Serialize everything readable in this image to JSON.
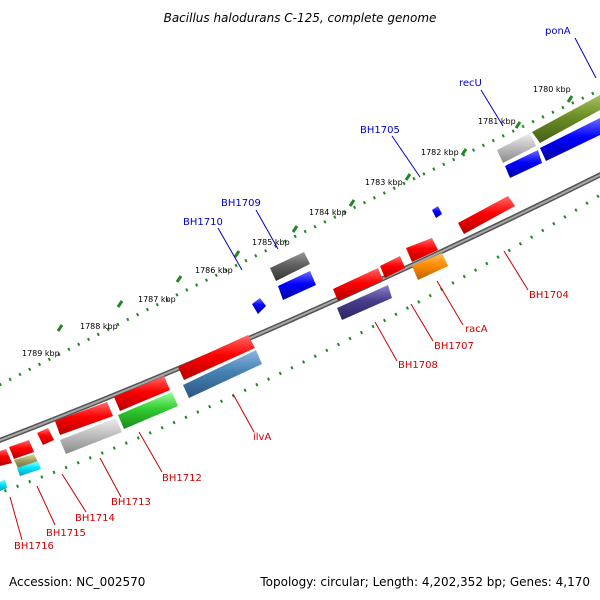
{
  "title": "Bacillus halodurans C-125, complete genome",
  "footer": {
    "accession": "Accession: NC_002570",
    "stats": "Topology: circular; Length: 4,202,352 bp; Genes: 4,170"
  },
  "colors": {
    "backbone": "#808080",
    "ticks": "#228822",
    "outer_label": "#0000cc",
    "inner_label": "#cc0000"
  },
  "kbp_labels": [
    "1780 kbp",
    "1781 kbp",
    "1782 kbp",
    "1783 kbp",
    "1784 kbp",
    "1785 kbp",
    "1786 kbp",
    "1787 kbp",
    "1788 kbp",
    "1789 kbp"
  ],
  "outer_gene_labels": [
    "ponA",
    "recU",
    "BH1705",
    "BH1709",
    "BH1710"
  ],
  "inner_gene_labels": [
    "BH1704",
    "racA",
    "BH1707",
    "BH1708",
    "ilvA",
    "BH1712",
    "BH1713",
    "BH1714",
    "BH1715",
    "BH1716"
  ]
}
